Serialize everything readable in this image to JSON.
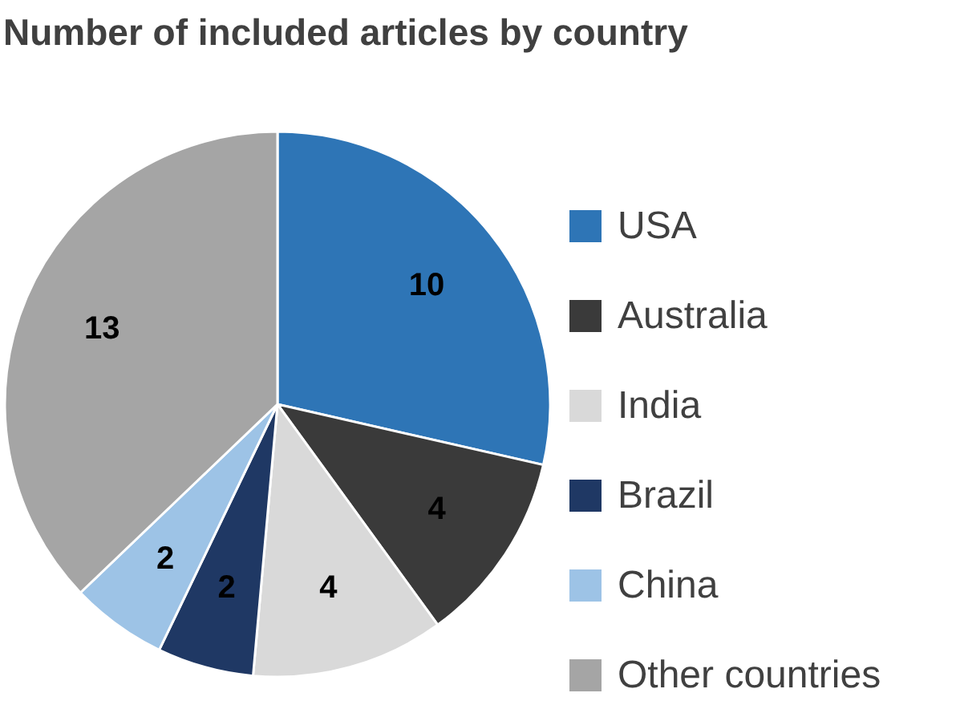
{
  "chart_data": {
    "type": "pie",
    "title": "Number of included articles by country",
    "categories": [
      "USA",
      "Australia",
      "India",
      "Brazil",
      "China",
      "Other countries"
    ],
    "values": [
      10,
      4,
      4,
      2,
      2,
      13
    ],
    "colors": [
      "#2e75b6",
      "#3a3a3a",
      "#d9d9d9",
      "#1f3864",
      "#9dc3e6",
      "#a5a5a5"
    ],
    "data_labels": true,
    "legend": "right"
  }
}
